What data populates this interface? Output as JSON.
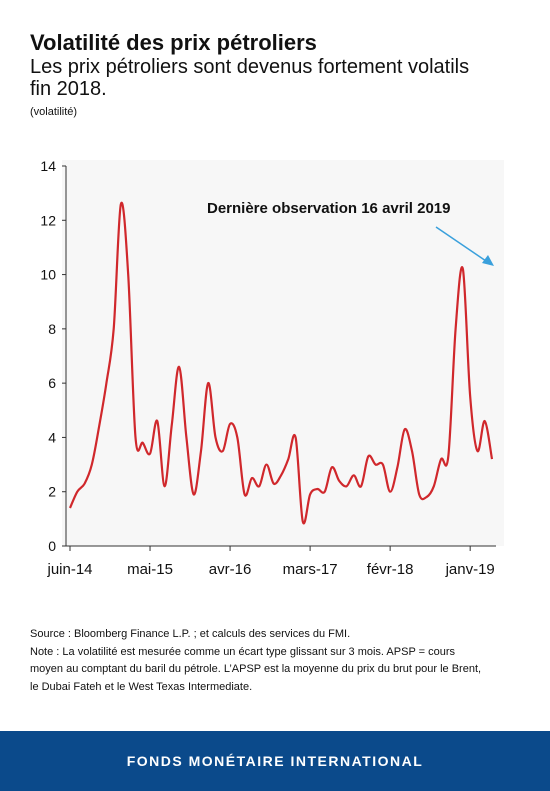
{
  "header": {
    "title": "Volatilité des prix pétroliers",
    "subtitle_line1": "Les prix pétroliers sont devenus fortement volatils",
    "subtitle_line2": "fin 2018.",
    "unit": "(volatilité)"
  },
  "notes": {
    "source": "Source : Bloomberg Finance L.P. ; et calculs des services du FMI.",
    "note_line1": "Note : La volatilité est mesurée comme un écart type glissant sur 3 mois. APSP = cours",
    "note_line2": "moyen au comptant du baril du pétrole. L’APSP est la moyenne du prix du brut pour le Brent,",
    "note_line3": "le Dubai Fateh et le West Texas Intermediate."
  },
  "footer": {
    "label": "FONDS MONÉTAIRE INTERNATIONAL"
  },
  "chart_data": {
    "type": "line",
    "title": "",
    "xlabel": "",
    "ylabel": "",
    "ylim": [
      0,
      14
    ],
    "yticks": [
      0,
      2,
      4,
      6,
      8,
      10,
      12,
      14
    ],
    "xticks": [
      "juin-14",
      "mai-15",
      "avr-16",
      "mars-17",
      "févr-18",
      "janv-19"
    ],
    "annotation": "Dernière observation 16 avril 2019",
    "grid": false,
    "legend": "none",
    "series": [
      {
        "color": "#d0282c",
        "x": [
          "2014-06",
          "2014-07",
          "2014-08",
          "2014-09",
          "2014-10",
          "2014-11",
          "2014-12",
          "2015-01",
          "2015-02",
          "2015-03",
          "2015-04",
          "2015-05",
          "2015-06",
          "2015-07",
          "2015-08",
          "2015-09",
          "2015-10",
          "2015-11",
          "2015-12",
          "2016-01",
          "2016-02",
          "2016-03",
          "2016-04",
          "2016-05",
          "2016-06",
          "2016-07",
          "2016-08",
          "2016-09",
          "2016-10",
          "2016-11",
          "2016-12",
          "2017-01",
          "2017-02",
          "2017-03",
          "2017-04",
          "2017-05",
          "2017-06",
          "2017-07",
          "2017-08",
          "2017-09",
          "2017-10",
          "2017-11",
          "2017-12",
          "2018-01",
          "2018-02",
          "2018-03",
          "2018-04",
          "2018-05",
          "2018-06",
          "2018-07",
          "2018-08",
          "2018-09",
          "2018-10",
          "2018-11",
          "2018-12",
          "2019-01",
          "2019-02",
          "2019-03",
          "2019-04"
        ],
        "values": [
          1.4,
          2.0,
          2.3,
          3.0,
          4.4,
          6.0,
          8.0,
          12.6,
          10.0,
          4.0,
          3.8,
          3.4,
          4.6,
          2.2,
          4.5,
          6.6,
          4.0,
          1.9,
          3.5,
          6.0,
          4.0,
          3.5,
          4.5,
          4.0,
          1.9,
          2.5,
          2.2,
          3.0,
          2.3,
          2.6,
          3.2,
          4.0,
          0.9,
          1.9,
          2.1,
          2.0,
          2.9,
          2.4,
          2.2,
          2.6,
          2.2,
          3.3,
          3.0,
          3.0,
          2.0,
          2.9,
          4.3,
          3.5,
          1.9,
          1.8,
          2.2,
          3.2,
          3.3,
          8.0,
          10.2,
          5.5,
          3.5,
          4.6,
          3.2
        ]
      }
    ]
  }
}
